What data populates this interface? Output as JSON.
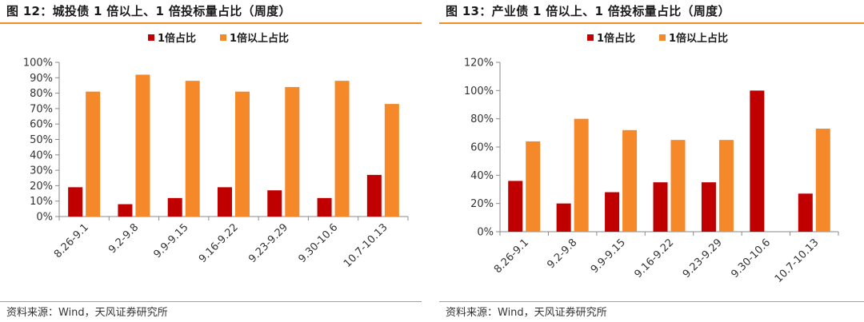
{
  "colors": {
    "accent": "#f08c2a",
    "series_red": "#c00000",
    "series_orange": "#f5892a"
  },
  "left": {
    "title": "图 12：城投债 1 倍以上、1 倍投标量占比（周度）",
    "source": "资料来源：Wind，天风证券研究所"
  },
  "right": {
    "title": "图 13：产业债 1 倍以上、1 倍投标量占比（周度）",
    "source": "资料来源：Wind，天风证券研究所"
  },
  "chart_data": [
    {
      "type": "bar",
      "title": "",
      "xlabel": "",
      "ylabel": "",
      "ylim": [
        0,
        100
      ],
      "ytick_step": 10,
      "ytick_format": "percent",
      "grid": false,
      "legend_position": "top-center",
      "categories": [
        "8.26-9.1",
        "9.2-9.8",
        "9.9-9.15",
        "9.16-9.22",
        "9.23-9.29",
        "9.30-10.6",
        "10.7-10.13"
      ],
      "series": [
        {
          "name": "1倍占比",
          "color": "#c00000",
          "values": [
            19,
            8,
            12,
            19,
            17,
            12,
            27
          ]
        },
        {
          "name": "1倍以上占比",
          "color": "#f5892a",
          "values": [
            81,
            92,
            88,
            81,
            84,
            88,
            73
          ]
        }
      ]
    },
    {
      "type": "bar",
      "title": "",
      "xlabel": "",
      "ylabel": "",
      "ylim": [
        0,
        120
      ],
      "ytick_step": 20,
      "ytick_format": "percent",
      "grid": false,
      "legend_position": "top-center",
      "categories": [
        "8.26-9.1",
        "9.2-9.8",
        "9.9-9.15",
        "9.16-9.22",
        "9.23-9.29",
        "9.30-10.6",
        "10.7-10.13"
      ],
      "series": [
        {
          "name": "1倍占比",
          "color": "#c00000",
          "values": [
            36,
            20,
            28,
            35,
            35,
            100,
            27
          ]
        },
        {
          "name": "1倍以上占比",
          "color": "#f5892a",
          "values": [
            64,
            80,
            72,
            65,
            65,
            0,
            73
          ]
        }
      ]
    }
  ]
}
